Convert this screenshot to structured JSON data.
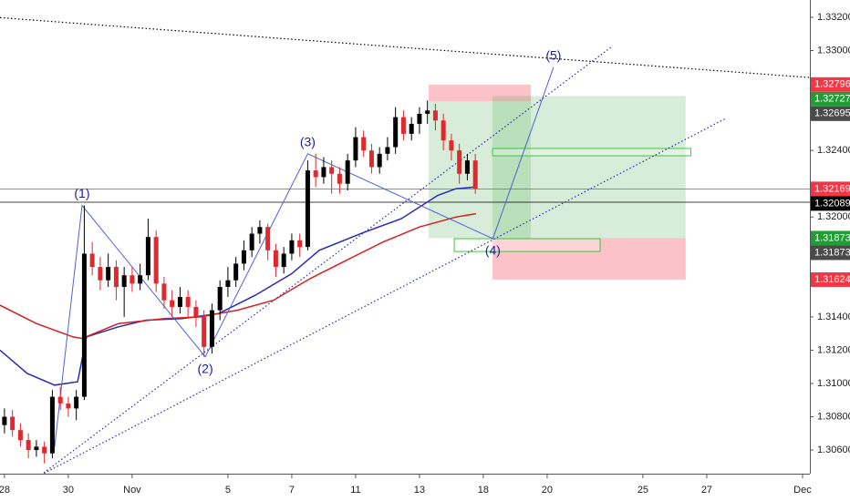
{
  "chart_data": {
    "type": "candlestick",
    "xlim": [
      -0.14,
      25.23
    ],
    "ylim": [
      1.30458,
      1.33304
    ],
    "grid": false,
    "up_color": "#000000",
    "down_color": "#e0282e",
    "xticks": [
      {
        "value": 0,
        "label": "28"
      },
      {
        "value": 2,
        "label": "30"
      },
      {
        "value": 4,
        "label": "Nov"
      },
      {
        "value": 7,
        "label": "5"
      },
      {
        "value": 9,
        "label": "7"
      },
      {
        "value": 11,
        "label": "11"
      },
      {
        "value": 13,
        "label": "13"
      },
      {
        "value": 15,
        "label": "18"
      },
      {
        "value": 17,
        "label": "20"
      },
      {
        "value": 20,
        "label": "25"
      },
      {
        "value": 22,
        "label": "27"
      },
      {
        "value": 25,
        "label": "Dec"
      }
    ],
    "yticks": [
      {
        "value": 1.332,
        "label": "1.33200"
      },
      {
        "value": 1.33,
        "label": "1.33000"
      },
      {
        "value": 1.324,
        "label": "1.32400"
      },
      {
        "value": 1.32,
        "label": "1.32000"
      },
      {
        "value": 1.314,
        "label": "1.31400"
      },
      {
        "value": 1.312,
        "label": "1.31200"
      },
      {
        "value": 1.31,
        "label": "1.31000"
      },
      {
        "value": 1.308,
        "label": "1.30800"
      },
      {
        "value": 1.306,
        "label": "1.30600"
      }
    ],
    "x": [
      0,
      0.25,
      0.5,
      0.75,
      1,
      1.25,
      1.5,
      1.75,
      2,
      2.25,
      2.5,
      2.75,
      3,
      3.25,
      3.5,
      3.75,
      4,
      4.25,
      4.5,
      4.75,
      5,
      5.25,
      5.5,
      5.75,
      6,
      6.25,
      6.5,
      6.75,
      7,
      7.25,
      7.5,
      7.75,
      8,
      8.25,
      8.5,
      8.75,
      9,
      9.25,
      9.5,
      9.75,
      10,
      10.25,
      10.5,
      10.75,
      11,
      11.25,
      11.5,
      11.75,
      12,
      12.25,
      12.5,
      12.75,
      13,
      13.25,
      13.5,
      13.75,
      14,
      14.25,
      14.5,
      14.75
    ],
    "open": [
      1.3075,
      1.308,
      1.3072,
      1.3066,
      1.306,
      1.3062,
      1.3058,
      1.3092,
      1.3088,
      1.3085,
      1.3092,
      1.3178,
      1.317,
      1.3162,
      1.317,
      1.3158,
      1.3165,
      1.316,
      1.3165,
      1.3188,
      1.316,
      1.315,
      1.3146,
      1.3152,
      1.3146,
      1.314,
      1.3122,
      1.3144,
      1.3158,
      1.3162,
      1.3172,
      1.318,
      1.319,
      1.3194,
      1.318,
      1.317,
      1.3178,
      1.3186,
      1.3182,
      1.3228,
      1.3224,
      1.323,
      1.3226,
      1.322,
      1.3234,
      1.3248,
      1.324,
      1.323,
      1.3238,
      1.3242,
      1.326,
      1.325,
      1.3256,
      1.3262,
      1.3264,
      1.3258,
      1.3246,
      1.324,
      1.3226,
      1.3234
    ],
    "high": [
      1.3085,
      1.3084,
      1.3076,
      1.307,
      1.3066,
      1.3065,
      1.3096,
      1.3098,
      1.3092,
      1.3096,
      1.3207,
      1.3185,
      1.3176,
      1.3178,
      1.3174,
      1.317,
      1.317,
      1.3172,
      1.3199,
      1.3192,
      1.3164,
      1.3156,
      1.3158,
      1.3156,
      1.315,
      1.3144,
      1.3148,
      1.3162,
      1.317,
      1.3176,
      1.3186,
      1.3194,
      1.3198,
      1.3196,
      1.3184,
      1.3182,
      1.319,
      1.319,
      1.3234,
      1.3238,
      1.3236,
      1.3234,
      1.323,
      1.3238,
      1.3254,
      1.3252,
      1.3244,
      1.3242,
      1.3248,
      1.3266,
      1.3264,
      1.326,
      1.3266,
      1.327,
      1.3268,
      1.3262,
      1.325,
      1.3244,
      1.3238,
      1.3238
    ],
    "low": [
      1.307,
      1.3068,
      1.3062,
      1.3055,
      1.3056,
      1.3052,
      1.3055,
      1.3084,
      1.308,
      1.3078,
      1.309,
      1.3165,
      1.3156,
      1.3158,
      1.315,
      1.314,
      1.3155,
      1.3156,
      1.3162,
      1.3155,
      1.3145,
      1.314,
      1.3142,
      1.314,
      1.3134,
      1.3116,
      1.3118,
      1.3138,
      1.3152,
      1.3158,
      1.3168,
      1.3176,
      1.3184,
      1.3174,
      1.3164,
      1.3166,
      1.3174,
      1.3176,
      1.318,
      1.3218,
      1.322,
      1.3214,
      1.3214,
      1.3216,
      1.323,
      1.3236,
      1.3226,
      1.3226,
      1.3234,
      1.3238,
      1.3246,
      1.3246,
      1.325,
      1.3256,
      1.3252,
      1.324,
      1.3234,
      1.322,
      1.3222,
      1.3214
    ],
    "close": [
      1.308,
      1.3072,
      1.3066,
      1.306,
      1.3062,
      1.3058,
      1.3092,
      1.3088,
      1.3085,
      1.3092,
      1.3178,
      1.317,
      1.3162,
      1.317,
      1.3158,
      1.3165,
      1.316,
      1.3165,
      1.3188,
      1.316,
      1.315,
      1.3146,
      1.3152,
      1.3146,
      1.314,
      1.3122,
      1.3144,
      1.3158,
      1.3162,
      1.3172,
      1.318,
      1.319,
      1.3194,
      1.318,
      1.317,
      1.3178,
      1.3186,
      1.3182,
      1.3228,
      1.3224,
      1.323,
      1.3226,
      1.322,
      1.3234,
      1.3248,
      1.324,
      1.323,
      1.3238,
      1.3242,
      1.326,
      1.325,
      1.3256,
      1.3262,
      1.3264,
      1.3258,
      1.3246,
      1.324,
      1.3226,
      1.3234,
      1.3217
    ],
    "ma": [
      {
        "color": "#2a2ab8",
        "x": [
          -0.14,
          0.71,
          1.57,
          2.29,
          2.57,
          3.57,
          4.43,
          5.57,
          6.71,
          7.86,
          9,
          9.86,
          11.29,
          12.43,
          13.57,
          14.14,
          14.71
        ],
        "values": [
          1.312,
          1.3106,
          1.3099,
          1.3101,
          1.3128,
          1.3134,
          1.3138,
          1.3139,
          1.3142,
          1.3153,
          1.3166,
          1.318,
          1.3191,
          1.3199,
          1.3213,
          1.3217,
          1.3218
        ]
      },
      {
        "color": "#d42020",
        "x": [
          -0.14,
          1.0,
          2.14,
          2.43,
          3.57,
          5.0,
          6.14,
          7.29,
          8.43,
          9.57,
          10.71,
          11.86,
          13,
          14.14,
          14.77
        ],
        "values": [
          1.3147,
          1.3136,
          1.3128,
          1.3127,
          1.3136,
          1.3139,
          1.314,
          1.3144,
          1.315,
          1.3163,
          1.3174,
          1.3185,
          1.3194,
          1.32,
          1.3202
        ]
      }
    ],
    "positions": [
      {
        "x": [
          13.29,
          16.49
        ],
        "entry": 1.32695,
        "stop": 1.32796,
        "target": 1.31873
      },
      {
        "x": [
          15.29,
          21.34
        ],
        "entry": 1.31873,
        "stop": 1.31624,
        "target": 1.32727
      }
    ],
    "zones": [
      {
        "x": [
          15.29,
          21.5
        ],
        "y": [
          1.32368,
          1.32412
        ]
      },
      {
        "x": [
          14.09,
          18.66
        ],
        "y": [
          1.31793,
          1.3187
        ]
      }
    ],
    "trendlines": [
      {
        "color": "#000000",
        "x": [
          -0.14,
          26.5
        ],
        "y": [
          1.33198,
          1.3282
        ]
      },
      {
        "color": "#2a2ab8",
        "x": [
          1.14,
          22.57
        ],
        "y": [
          1.3045,
          1.3259
        ]
      },
      {
        "color": "#2a2ab8",
        "x": [
          1.14,
          19.0
        ],
        "y": [
          1.3045,
          1.3302
        ]
      }
    ],
    "hlines": [
      {
        "value": 1.32169,
        "color": "#f23645"
      },
      {
        "value": 1.32089,
        "color": "#000000"
      }
    ],
    "wave_path": {
      "color": "#5060d8",
      "x": [
        1.57,
        2.43,
        6.29,
        9.5,
        15.3,
        17.2
      ],
      "y": [
        1.3062,
        1.3207,
        1.3116,
        1.3238,
        1.3187,
        1.329
      ]
    },
    "wave_labels": [
      {
        "text": "(1)",
        "x": 2.43,
        "y": 1.3207
      },
      {
        "text": "(2)",
        "x": 6.29,
        "y": 1.3116
      },
      {
        "text": "(3)",
        "x": 9.5,
        "y": 1.3238
      },
      {
        "text": "(4)",
        "x": 15.3,
        "y": 1.3187
      },
      {
        "text": "(5)",
        "x": 17.2,
        "y": 1.329
      }
    ],
    "price_tags": [
      {
        "value": 1.32796,
        "color": "#f23645"
      },
      {
        "value": 1.32727,
        "color": "#1f9e35"
      },
      {
        "value": 1.32695,
        "color": "#4a4a4a"
      },
      {
        "value": 1.32169,
        "color": "#f23645"
      },
      {
        "value": 1.32089,
        "color": "#000000"
      },
      {
        "value": 1.31873,
        "color": "#1f9e35"
      },
      {
        "value": 1.31873,
        "color": "#4a4a4a"
      },
      {
        "value": 1.31624,
        "color": "#f23645"
      }
    ]
  }
}
